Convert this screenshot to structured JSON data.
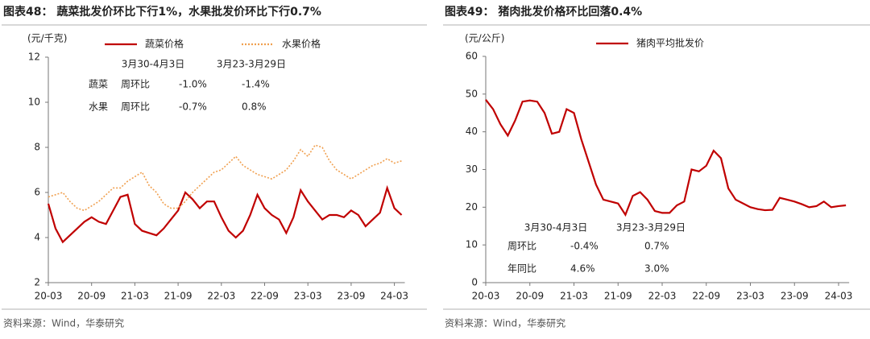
{
  "chart_data": [
    {
      "type": "line",
      "title": "图表48：  蔬菜批发价环比下行1%，水果批发价环比下行0.7%",
      "y_label": "(元/千克)",
      "source": "资料来源：Wind，华泰研究",
      "categories": [
        "20-03",
        null,
        null,
        null,
        null,
        null,
        "20-09",
        null,
        null,
        null,
        null,
        null,
        "21-03",
        null,
        null,
        null,
        null,
        null,
        "21-09",
        null,
        null,
        null,
        null,
        null,
        "22-03",
        null,
        null,
        null,
        null,
        null,
        "22-09",
        null,
        null,
        null,
        null,
        null,
        "23-03",
        null,
        null,
        null,
        null,
        null,
        "23-09",
        null,
        null,
        null,
        null,
        null,
        "24-03",
        null
      ],
      "series": [
        {
          "name": "蔬菜价格",
          "color": "#c00000",
          "style": "solid",
          "values": [
            5.5,
            4.4,
            3.8,
            4.1,
            4.4,
            4.7,
            4.9,
            4.7,
            4.6,
            5.2,
            5.8,
            5.9,
            4.6,
            4.3,
            4.2,
            4.1,
            4.4,
            4.8,
            5.2,
            6.0,
            5.7,
            5.3,
            5.6,
            5.6,
            4.9,
            4.3,
            4.0,
            4.3,
            5.0,
            5.9,
            5.3,
            5.0,
            4.8,
            4.2,
            4.9,
            6.1,
            5.6,
            5.2,
            4.8,
            5.0,
            5.0,
            4.9,
            5.2,
            5.0,
            4.5,
            4.8,
            5.1,
            6.2,
            5.3,
            5.0
          ]
        },
        {
          "name": "水果价格",
          "color": "#f0a050",
          "style": "dotted",
          "values": [
            5.8,
            5.9,
            6.0,
            5.6,
            5.3,
            5.2,
            5.4,
            5.6,
            5.9,
            6.2,
            6.2,
            6.5,
            6.7,
            6.9,
            6.3,
            6.0,
            5.5,
            5.3,
            5.3,
            5.6,
            6.0,
            6.3,
            6.6,
            6.9,
            7.0,
            7.3,
            7.6,
            7.2,
            7.0,
            6.8,
            6.7,
            6.6,
            6.8,
            7.0,
            7.4,
            7.9,
            7.6,
            8.1,
            8.0,
            7.4,
            7.0,
            6.8,
            6.6,
            6.8,
            7.0,
            7.2,
            7.3,
            7.5,
            7.3,
            7.4
          ]
        }
      ],
      "ylim": [
        2,
        12
      ],
      "yticks": [
        2,
        4,
        6,
        8,
        10,
        12
      ],
      "table": {
        "header": [
          "3月30-4月3日",
          "3月23-3月29日"
        ],
        "rows": [
          [
            "蔬菜",
            "周环比",
            "-1.0%",
            "-1.4%"
          ],
          [
            "水果",
            "周环比",
            "-0.7%",
            "0.8%"
          ]
        ]
      }
    },
    {
      "type": "line",
      "title": "图表49：  猪肉批发价格环比回落0.4%",
      "y_label": "(元/公斤)",
      "source": "资料来源：Wind，华泰研究",
      "categories": [
        "20-03",
        null,
        null,
        null,
        null,
        null,
        "20-09",
        null,
        null,
        null,
        null,
        null,
        "21-03",
        null,
        null,
        null,
        null,
        null,
        "21-09",
        null,
        null,
        null,
        null,
        null,
        "22-03",
        null,
        null,
        null,
        null,
        null,
        "22-09",
        null,
        null,
        null,
        null,
        null,
        "23-03",
        null,
        null,
        null,
        null,
        null,
        "23-09",
        null,
        null,
        null,
        null,
        null,
        "24-03",
        null
      ],
      "series": [
        {
          "name": "猪肉平均批发价",
          "color": "#c00000",
          "style": "solid",
          "values": [
            48.5,
            46,
            42,
            39,
            43,
            48,
            48.3,
            48,
            45,
            39.5,
            40,
            46,
            45,
            38,
            32,
            26,
            22,
            21.5,
            21,
            18,
            23,
            24,
            22,
            19,
            18.5,
            18.5,
            20.5,
            21.5,
            30,
            29.5,
            31,
            35,
            33,
            25,
            22,
            21,
            20,
            19.5,
            19.2,
            19.3,
            22.5,
            22,
            21.5,
            20.8,
            20,
            20.3,
            21.5,
            20,
            20.3,
            20.5
          ]
        }
      ],
      "ylim": [
        0,
        60
      ],
      "yticks": [
        0,
        10,
        20,
        30,
        40,
        50,
        60
      ],
      "table": {
        "header": [
          "3月30-4月3日",
          "3月23-3月29日"
        ],
        "rows": [
          [
            "周环比",
            "-0.4%",
            "0.7%"
          ],
          [
            "年同比",
            "4.6%",
            "3.0%"
          ]
        ]
      }
    }
  ]
}
